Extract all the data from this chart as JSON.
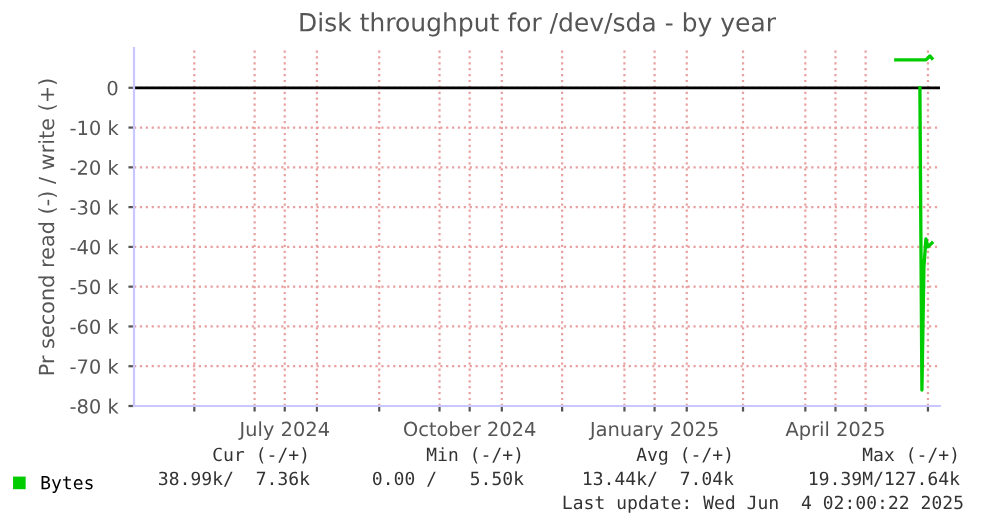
{
  "chart_data": {
    "type": "line",
    "title": "Disk throughput for /dev/sda - by year",
    "ylabel": "Pr second read (-) / write (+)",
    "xlim": [
      "2024-05-02",
      "2025-06-07"
    ],
    "xticks": [
      {
        "value": "2024-06-01",
        "label": null
      },
      {
        "value": "2024-07-01",
        "label": null
      },
      {
        "value": "2024-07-16",
        "label": "July 2024"
      },
      {
        "value": "2024-08-01",
        "label": null
      },
      {
        "value": "2024-09-01",
        "label": null
      },
      {
        "value": "2024-10-01",
        "label": null
      },
      {
        "value": "2024-10-16",
        "label": "October 2024"
      },
      {
        "value": "2024-11-01",
        "label": null
      },
      {
        "value": "2024-12-01",
        "label": null
      },
      {
        "value": "2025-01-01",
        "label": null
      },
      {
        "value": "2025-01-16",
        "label": "January 2025"
      },
      {
        "value": "2025-02-01",
        "label": null
      },
      {
        "value": "2025-03-01",
        "label": null
      },
      {
        "value": "2025-04-01",
        "label": null
      },
      {
        "value": "2025-04-16",
        "label": "April 2025"
      },
      {
        "value": "2025-05-01",
        "label": null
      },
      {
        "value": "2025-06-01",
        "label": null
      }
    ],
    "ylim": [
      -80000,
      10000
    ],
    "yticks": [
      {
        "value": -80000,
        "label": "-80 k"
      },
      {
        "value": -70000,
        "label": "-70 k"
      },
      {
        "value": -60000,
        "label": "-60 k"
      },
      {
        "value": -50000,
        "label": "-50 k"
      },
      {
        "value": -40000,
        "label": "-40 k"
      },
      {
        "value": -30000,
        "label": "-30 k"
      },
      {
        "value": -20000,
        "label": "-20 k"
      },
      {
        "value": -10000,
        "label": "-10 k"
      },
      0
    ],
    "grid": true,
    "legend": "bottom",
    "marker": "none",
    "line_style": "solid",
    "series": [
      {
        "name": "Bytes",
        "color": "#00cc00",
        "x": [
          "2025-05-16",
          "2025-05-31",
          "2025-06-02",
          "2025-06-03"
        ],
        "values": [
          7000,
          7000,
          8000,
          7400
        ]
      },
      {
        "color": "#00cc00",
        "x": [
          "2025-05-28",
          "2025-05-29",
          "2025-05-30",
          "2025-05-31",
          "2025-06-01",
          "2025-06-03"
        ],
        "values": [
          0,
          -76000,
          -45000,
          -38000,
          -40000,
          -39000
        ]
      }
    ],
    "ref_lines": [
      {
        "axis": "y",
        "value": 0,
        "color": "#000000"
      }
    ],
    "annotations": [
      "Cur (-/+)",
      "Min (-/+)",
      "Avg (-/+)",
      "Max (-/+)",
      "38.99k/  7.36k",
      "0.00 /   5.50k",
      "13.44k/  7.04k",
      "19.39M/127.64k",
      "Last update: Wed Jun  4 02:00:22 2025"
    ]
  }
}
